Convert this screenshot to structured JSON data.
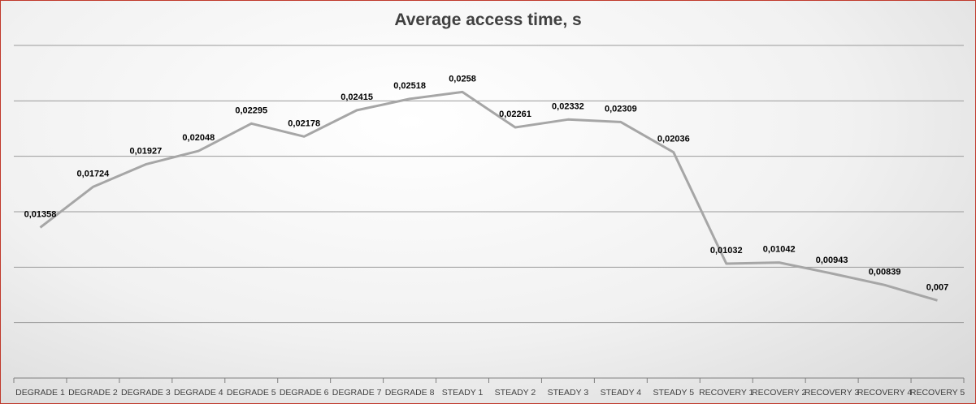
{
  "chart_data": {
    "type": "line",
    "title": "Average access time, s",
    "xlabel": "",
    "ylabel": "",
    "categories": [
      "DEGRADE 1",
      "DEGRADE 2",
      "DEGRADE 3",
      "DEGRADE 4",
      "DEGRADE 5",
      "DEGRADE 6",
      "DEGRADE 7",
      "DEGRADE 8",
      "STEADY 1",
      "STEADY 2",
      "STEADY 3",
      "STEADY 4",
      "STEADY 5",
      "RECOVERY 1",
      "RECOVERY 2",
      "RECOVERY 3",
      "RECOVERY 4",
      "RECOVERY 5"
    ],
    "values": [
      0.01358,
      0.01724,
      0.01927,
      0.02048,
      0.02295,
      0.02178,
      0.02415,
      0.02518,
      0.0258,
      0.02261,
      0.02332,
      0.02309,
      0.02036,
      0.01032,
      0.01042,
      0.00943,
      0.00839,
      0.007
    ],
    "data_labels": [
      "0,01358",
      "0,01724",
      "0,01927",
      "0,02048",
      "0,02295",
      "0,02178",
      "0,02415",
      "0,02518",
      "0,0258",
      "0,02261",
      "0,02332",
      "0,02309",
      "0,02036",
      "0,01032",
      "0,01042",
      "0,00943",
      "0,00839",
      "0,007"
    ],
    "ylim": [
      0.0,
      0.03
    ],
    "gridlines_y": [
      0.005,
      0.01,
      0.015,
      0.02,
      0.025,
      0.03
    ],
    "grid": true,
    "legend": "none",
    "series_color": "#a6a6a6",
    "frame_color": "#c0392b"
  }
}
